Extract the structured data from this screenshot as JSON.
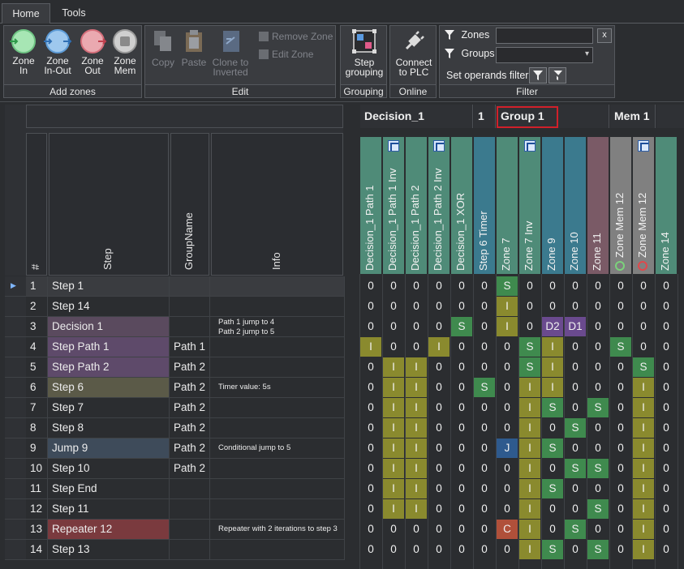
{
  "tabs": [
    {
      "label": "Home",
      "active": true
    },
    {
      "label": "Tools",
      "active": false
    }
  ],
  "ribbon": {
    "add_zones": {
      "title": "Add zones",
      "buttons": [
        {
          "label": "Zone\nIn",
          "icon": "zone-in-icon"
        },
        {
          "label": "Zone\nIn-Out",
          "icon": "zone-in-out-icon"
        },
        {
          "label": "Zone\nOut",
          "icon": "zone-out-icon"
        },
        {
          "label": "Zone\nMem",
          "icon": "zone-mem-icon"
        }
      ]
    },
    "edit": {
      "title": "Edit",
      "copy": "Copy",
      "paste": "Paste",
      "clone": "Clone to\nInverted",
      "remove_zone": "Remove Zone",
      "edit_zone": "Edit Zone"
    },
    "grouping": {
      "title": "Grouping",
      "step_grouping": "Step\ngrouping"
    },
    "online": {
      "title": "Online",
      "connect": "Connect\nto PLC"
    },
    "filter": {
      "title": "Filter",
      "zones_label": "Zones",
      "zones_value": "",
      "clear": "x",
      "groups_label": "Groups",
      "groups_value": "",
      "set_operands": "Set operands filter"
    }
  },
  "grid": {
    "left_headers": [
      "#",
      "Step",
      "GroupName",
      "Info"
    ],
    "group_headers": [
      {
        "label": "Decision_1"
      },
      {
        "label": "1"
      },
      {
        "label": "Group 1"
      },
      {
        "label": "Mem 1"
      }
    ],
    "zone_columns": [
      {
        "label": "Decision_1 Path 1",
        "inv": false,
        "color": "#4f8b78"
      },
      {
        "label": "Decision_1 Path 1 Inv",
        "inv": true,
        "color": "#4f8b78"
      },
      {
        "label": "Decision_1 Path 2",
        "inv": false,
        "color": "#4f8b78"
      },
      {
        "label": "Decision_1 Path 2 Inv",
        "inv": true,
        "color": "#4f8b78"
      },
      {
        "label": "Decision_1 XOR",
        "inv": false,
        "color": "#4f8b78"
      },
      {
        "label": "Step 6 Timer",
        "inv": false,
        "color": "#3b7a8e"
      },
      {
        "label": "Zone 7",
        "inv": false,
        "color": "#4f8b78"
      },
      {
        "label": "Zone 7 Inv",
        "inv": true,
        "color": "#4f8b78"
      },
      {
        "label": "Zone 9",
        "inv": false,
        "color": "#3b7a8e"
      },
      {
        "label": "Zone 10",
        "inv": false,
        "color": "#3b7a8e"
      },
      {
        "label": "Zone 11",
        "inv": false,
        "color": "#7a5a66"
      },
      {
        "label": "Zone Mem 12",
        "inv": false,
        "color": "#808080",
        "ring": "#7bd27b"
      },
      {
        "label": "Zone Mem 12",
        "inv": true,
        "color": "#808080",
        "ring": "#e0484c"
      },
      {
        "label": "Zone 14",
        "inv": false,
        "color": "#4f8b78"
      }
    ],
    "rows": [
      {
        "num": "1",
        "step": "Step 1",
        "group": "",
        "info": "",
        "cur": true,
        "cells": [
          "0",
          "0",
          "0",
          "0",
          "0",
          "0",
          "S",
          "0",
          "0",
          "0",
          "0",
          "0",
          "0",
          "0"
        ]
      },
      {
        "num": "2",
        "step": "Step 14",
        "group": "",
        "info": "",
        "cells": [
          "0",
          "0",
          "0",
          "0",
          "0",
          "0",
          "I",
          "0",
          "0",
          "0",
          "0",
          "0",
          "0",
          "0"
        ]
      },
      {
        "num": "3",
        "step": "Decision 1",
        "group": "",
        "info": "Path 1 jump to 4\nPath 2 jump to 5",
        "cells": [
          "0",
          "0",
          "0",
          "0",
          "S",
          "0",
          "I",
          "0",
          "D2",
          "D1",
          "0",
          "0",
          "0",
          "0"
        ]
      },
      {
        "num": "4",
        "step": "Step Path 1",
        "group": "Path 1",
        "info": "",
        "cells": [
          "I",
          "0",
          "0",
          "I",
          "0",
          "0",
          "0",
          "S",
          "I",
          "0",
          "0",
          "S",
          "0",
          "0"
        ]
      },
      {
        "num": "5",
        "step": "Step Path 2",
        "group": "Path 2",
        "info": "",
        "cells": [
          "0",
          "I",
          "I",
          "0",
          "0",
          "0",
          "0",
          "S",
          "I",
          "0",
          "0",
          "0",
          "S",
          "0"
        ]
      },
      {
        "num": "6",
        "step": "Step 6",
        "group": "Path 2",
        "info": "Timer value: 5s",
        "cells": [
          "0",
          "I",
          "I",
          "0",
          "0",
          "S",
          "0",
          "I",
          "I",
          "0",
          "0",
          "0",
          "I",
          "0"
        ]
      },
      {
        "num": "7",
        "step": "Step 7",
        "group": "Path 2",
        "info": "",
        "cells": [
          "0",
          "I",
          "I",
          "0",
          "0",
          "0",
          "0",
          "I",
          "S",
          "0",
          "S",
          "0",
          "I",
          "0"
        ]
      },
      {
        "num": "8",
        "step": "Step 8",
        "group": "Path 2",
        "info": "",
        "cells": [
          "0",
          "I",
          "I",
          "0",
          "0",
          "0",
          "0",
          "I",
          "0",
          "S",
          "0",
          "0",
          "I",
          "0"
        ]
      },
      {
        "num": "9",
        "step": "Jump 9",
        "group": "Path 2",
        "info": "Conditional jump to 5",
        "cells": [
          "0",
          "I",
          "I",
          "0",
          "0",
          "0",
          "J",
          "I",
          "S",
          "0",
          "0",
          "0",
          "I",
          "0"
        ]
      },
      {
        "num": "10",
        "step": "Step 10",
        "group": "Path 2",
        "info": "",
        "cells": [
          "0",
          "I",
          "I",
          "0",
          "0",
          "0",
          "0",
          "I",
          "0",
          "S",
          "S",
          "0",
          "I",
          "0"
        ]
      },
      {
        "num": "11",
        "step": "Step End",
        "group": "",
        "info": "",
        "cells": [
          "0",
          "I",
          "I",
          "0",
          "0",
          "0",
          "0",
          "I",
          "S",
          "0",
          "0",
          "0",
          "I",
          "0"
        ]
      },
      {
        "num": "12",
        "step": "Step 11",
        "group": "",
        "info": "",
        "cells": [
          "0",
          "I",
          "I",
          "0",
          "0",
          "0",
          "0",
          "I",
          "0",
          "0",
          "S",
          "0",
          "I",
          "0"
        ]
      },
      {
        "num": "13",
        "step": "Repeater 12",
        "group": "",
        "info": "Repeater with 2 iterations to step 3",
        "cells": [
          "0",
          "0",
          "0",
          "0",
          "0",
          "0",
          "C",
          "I",
          "0",
          "S",
          "0",
          "0",
          "I",
          "0"
        ]
      },
      {
        "num": "14",
        "step": "Step 13",
        "group": "",
        "info": "",
        "cells": [
          "0",
          "0",
          "0",
          "0",
          "0",
          "0",
          "0",
          "I",
          "S",
          "0",
          "S",
          "0",
          "I",
          "0"
        ]
      }
    ]
  },
  "colors": {
    "I": "#8a8a2e",
    "S": "#3f8a4e",
    "D": "#6a4a8e",
    "J": "#2e5a8e",
    "C": "#b0503a",
    "step_decision": "#5a4a5e",
    "step_path": "#5e4a6a",
    "step_timer": "#5b5a48",
    "step_jump": "#3e4b5a",
    "step_repeater": "#7a3a3e",
    "highlight_box": "#d0202a"
  }
}
